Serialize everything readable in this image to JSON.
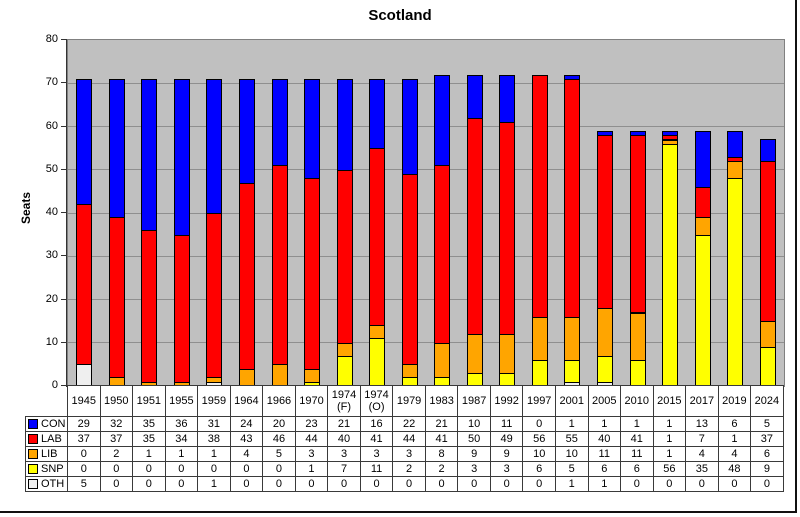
{
  "chart_data": {
    "type": "bar",
    "stacked": true,
    "title": "Scotland",
    "xlabel": "",
    "ylabel": "Seats",
    "ylim": [
      0,
      80
    ],
    "ytick_interval": 10,
    "grid": true,
    "plot_bg_color": "#C0C0C0",
    "gridline_color": "#8f8f8f",
    "legend_position": "left-of-data-table",
    "categories": [
      "1945",
      "1950",
      "1951",
      "1955",
      "1959",
      "1964",
      "1966",
      "1970",
      "1974 (F)",
      "1974 (O)",
      "1979",
      "1983",
      "1987",
      "1992",
      "1997",
      "2001",
      "2005",
      "2010",
      "2015",
      "2017",
      "2019",
      "2024"
    ],
    "series": [
      {
        "name": "CON",
        "color": "#0000FF",
        "values": [
          29,
          32,
          35,
          36,
          31,
          24,
          20,
          23,
          21,
          16,
          22,
          21,
          10,
          11,
          0,
          1,
          1,
          1,
          1,
          13,
          6,
          5
        ]
      },
      {
        "name": "LAB",
        "color": "#FF0000",
        "values": [
          37,
          37,
          35,
          34,
          38,
          43,
          46,
          44,
          40,
          41,
          44,
          41,
          50,
          49,
          56,
          55,
          40,
          41,
          1,
          7,
          1,
          37
        ]
      },
      {
        "name": "LIB",
        "color": "#FFA500",
        "values": [
          0,
          2,
          1,
          1,
          1,
          4,
          5,
          3,
          3,
          3,
          3,
          8,
          9,
          9,
          10,
          10,
          11,
          11,
          1,
          4,
          4,
          6
        ]
      },
      {
        "name": "SNP",
        "color": "#FFFF00",
        "values": [
          0,
          0,
          0,
          0,
          0,
          0,
          0,
          1,
          7,
          11,
          2,
          2,
          3,
          3,
          6,
          5,
          6,
          6,
          56,
          35,
          48,
          9
        ]
      },
      {
        "name": "OTH",
        "color": "#EFEFEF",
        "values": [
          5,
          0,
          0,
          0,
          1,
          0,
          0,
          0,
          0,
          0,
          0,
          0,
          0,
          0,
          0,
          1,
          1,
          0,
          0,
          0,
          0,
          0
        ]
      }
    ],
    "stack_order_bottom_to_top": [
      "OTH",
      "SNP",
      "LIB",
      "LAB",
      "CON"
    ]
  }
}
